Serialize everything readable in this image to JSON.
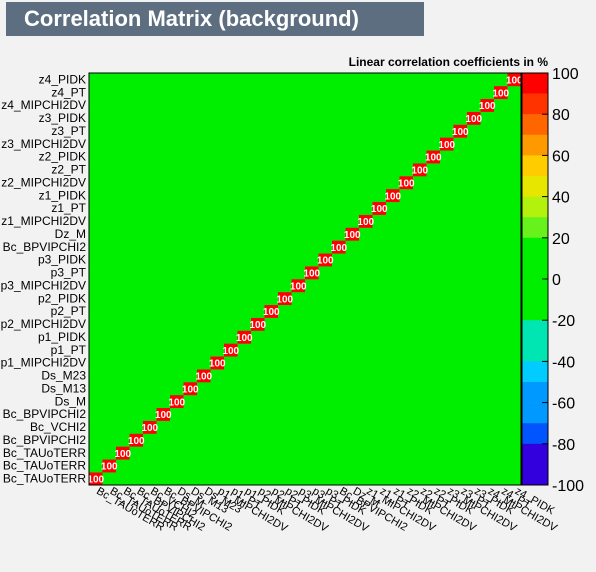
{
  "header": {
    "title": "Correlation Matrix (background)",
    "subtitle": "Linear correlation coefficients in %"
  },
  "chart_data": {
    "type": "heatmap",
    "title": "Correlation Matrix (background)",
    "subtitle": "Linear correlation coefficients in %",
    "zlim": [
      -100,
      100
    ],
    "colorbar_ticks": [
      100,
      80,
      60,
      40,
      20,
      0,
      -20,
      -40,
      -60,
      -80,
      -100
    ],
    "labels": [
      "Bc_TAUoTERR",
      "Bc_TAUoTERR",
      "Bc_TAUoTERR",
      "Bc_BPVIPCHI2",
      "Bc_VCHI2",
      "Bc_BPVIPCHI2",
      "Ds_M",
      "Ds_M13",
      "Ds_M23",
      "p1_MIPCHI2DV",
      "p1_PT",
      "p1_PIDK",
      "p2_MIPCHI2DV",
      "p2_PT",
      "p2_PIDK",
      "p3_MIPCHI2DV",
      "p3_PT",
      "p3_PIDK",
      "Bc_BPVIPCHI2",
      "Dz_M",
      "z1_MIPCHI2DV",
      "z1_PT",
      "z1_PIDK",
      "z2_MIPCHI2DV",
      "z2_PT",
      "z2_PIDK",
      "z3_MIPCHI2DV",
      "z3_PT",
      "z3_PIDK",
      "z4_MIPCHI2DV",
      "z4_PT",
      "z4_PIDK"
    ]
  }
}
